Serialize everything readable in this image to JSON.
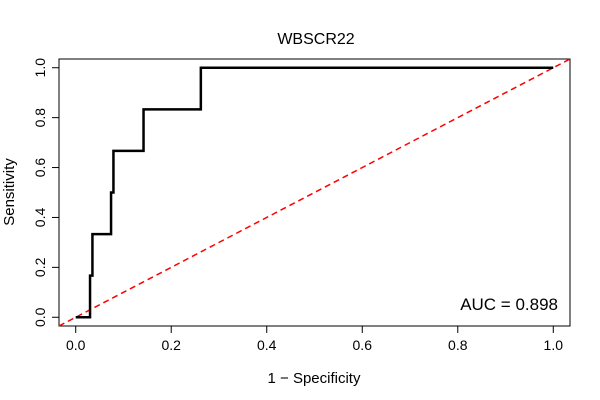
{
  "chart_data": {
    "type": "line",
    "title": "WBSCR22",
    "xlabel": "1 − Specificity",
    "ylabel": "Sensitivity",
    "xlim": [
      -0.035,
      1.035
    ],
    "ylim": [
      -0.035,
      1.035
    ],
    "x_ticks": [
      0.0,
      0.2,
      0.4,
      0.6,
      0.8,
      1.0
    ],
    "x_tick_labels": [
      "0.0",
      "0.2",
      "0.4",
      "0.6",
      "0.8",
      "1.0"
    ],
    "y_ticks": [
      0.0,
      0.2,
      0.4,
      0.6,
      0.8,
      1.0
    ],
    "y_tick_labels": [
      "0.0",
      "0.2",
      "0.4",
      "0.6",
      "0.8",
      "1.0"
    ],
    "series": [
      {
        "name": "ROC curve",
        "color": "#000000",
        "points": [
          [
            0.0,
            0.0
          ],
          [
            0.03,
            0.0
          ],
          [
            0.03,
            0.167
          ],
          [
            0.035,
            0.167
          ],
          [
            0.035,
            0.333
          ],
          [
            0.074,
            0.333
          ],
          [
            0.074,
            0.5
          ],
          [
            0.079,
            0.5
          ],
          [
            0.079,
            0.667
          ],
          [
            0.142,
            0.667
          ],
          [
            0.142,
            0.833
          ],
          [
            0.262,
            0.833
          ],
          [
            0.262,
            1.0
          ],
          [
            1.0,
            1.0
          ]
        ]
      },
      {
        "name": "Reference diagonal",
        "color": "#ff0000",
        "style": "dashed",
        "points": [
          [
            -0.035,
            -0.035
          ],
          [
            1.035,
            1.035
          ]
        ]
      }
    ],
    "annotation": "AUC = 0.898"
  }
}
